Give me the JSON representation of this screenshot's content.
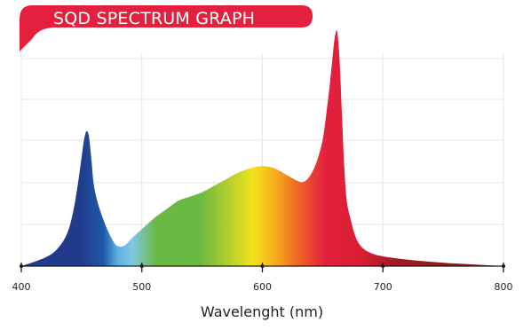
{
  "chart_data": {
    "type": "area",
    "title": "SQD SPECTRUM GRAPH",
    "xlabel": "Wavelenght (nm)",
    "ylabel": "",
    "xlim": [
      400,
      800
    ],
    "ylim": [
      0,
      1.2
    ],
    "x_ticks": [
      400,
      500,
      600,
      700,
      800
    ],
    "grid": true,
    "series": [
      {
        "x": [
          400,
          420,
          430,
          438,
          443,
          447,
          450,
          452,
          454,
          456,
          458,
          460,
          463,
          467,
          472,
          478,
          483,
          487,
          492,
          500,
          510,
          520,
          530,
          540,
          550,
          560,
          570,
          580,
          590,
          600,
          610,
          620,
          630,
          635,
          640,
          645,
          650,
          653,
          656,
          658,
          660,
          662,
          664,
          666,
          668,
          670,
          673,
          677,
          682,
          690,
          700,
          720,
          740,
          760,
          780,
          800
        ],
        "values": [
          0.0,
          0.04,
          0.08,
          0.15,
          0.25,
          0.38,
          0.5,
          0.58,
          0.62,
          0.6,
          0.5,
          0.38,
          0.3,
          0.23,
          0.16,
          0.1,
          0.09,
          0.1,
          0.13,
          0.17,
          0.22,
          0.26,
          0.3,
          0.32,
          0.34,
          0.37,
          0.4,
          0.43,
          0.45,
          0.46,
          0.45,
          0.42,
          0.39,
          0.39,
          0.42,
          0.48,
          0.58,
          0.7,
          0.84,
          0.95,
          1.05,
          1.08,
          0.95,
          0.7,
          0.45,
          0.3,
          0.22,
          0.14,
          0.09,
          0.06,
          0.045,
          0.03,
          0.02,
          0.012,
          0.006,
          0.0
        ]
      }
    ]
  },
  "colors": {
    "title_banner": "#e4203e",
    "grid": "#e6e6e6",
    "axis": "#1a1a1a",
    "spectrum": [
      "#2a3d8f",
      "#1f5fae",
      "#71c7e6",
      "#66b544",
      "#7fc241",
      "#f0e61b",
      "#f28c1e",
      "#e4203e",
      "#a81c24"
    ]
  }
}
